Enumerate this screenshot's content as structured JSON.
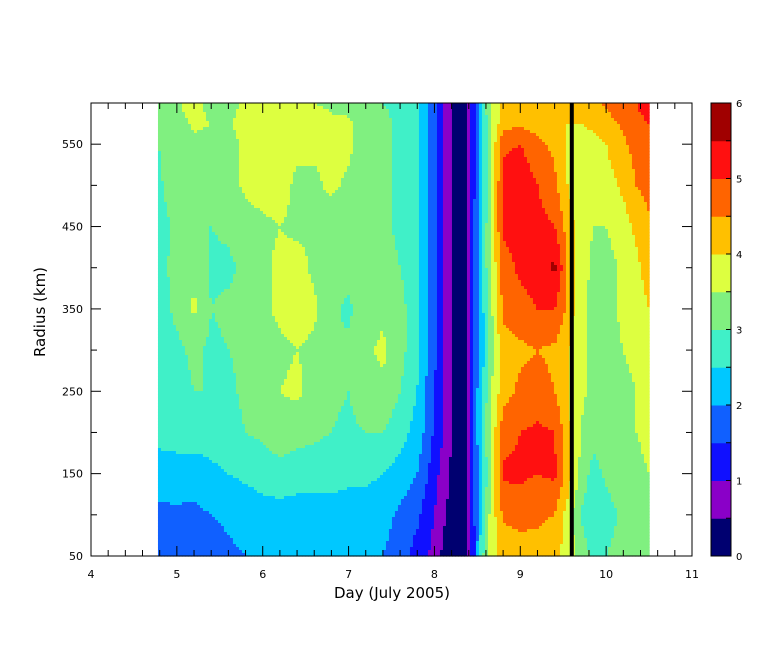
{
  "chart_data": {
    "type": "heatmap",
    "title": "",
    "xlabel": "Day (July 2005)",
    "ylabel": "Radius (km)",
    "xlim": [
      4,
      11
    ],
    "ylim": [
      50,
      600
    ],
    "x_ticks": [
      4,
      5,
      6,
      7,
      8,
      9,
      10,
      11
    ],
    "x_minor_step": 0.2,
    "y_ticks": [
      50,
      150,
      250,
      350,
      450,
      550
    ],
    "y_minor_step": 50,
    "data_x_range": [
      4.78,
      10.5
    ],
    "colorbar": {
      "min": 0,
      "max": 6,
      "step": 0.5,
      "labels": [
        0,
        1,
        2,
        3,
        4,
        5,
        6
      ],
      "colors": [
        "#000070",
        "#8a00c8",
        "#1010ff",
        "#1060ff",
        "#00c8ff",
        "#40f0c8",
        "#80f080",
        "#ddff40",
        "#ffc000",
        "#ff6400",
        "#ff1010",
        "#a00000"
      ]
    },
    "columns": [
      {
        "day": 4.78,
        "values": [
          1.8,
          1.9,
          2.2,
          2.7,
          2.9,
          2.8,
          2.8,
          2.9,
          2.8,
          2.9,
          3.0,
          3.3,
          3.2
        ]
      },
      {
        "day": 5.0,
        "values": [
          1.7,
          1.9,
          2.3,
          2.7,
          2.8,
          2.9,
          3.1,
          3.1,
          3.1,
          3.3,
          3.2,
          3.2,
          3.4
        ]
      },
      {
        "day": 5.2,
        "values": [
          1.6,
          1.9,
          2.2,
          2.8,
          3.0,
          3.1,
          3.6,
          3.4,
          3.0,
          3.3,
          3.4,
          3.6,
          3.9
        ]
      },
      {
        "day": 5.4,
        "values": [
          1.7,
          2.0,
          2.4,
          2.7,
          3.0,
          2.9,
          3.0,
          2.9,
          3.0,
          3.2,
          3.3,
          3.5,
          3.2
        ]
      },
      {
        "day": 5.6,
        "values": [
          1.9,
          2.1,
          2.5,
          2.8,
          2.9,
          3.0,
          3.1,
          2.9,
          3.1,
          3.3,
          3.2,
          3.4,
          3.3
        ]
      },
      {
        "day": 5.8,
        "values": [
          2.0,
          2.2,
          2.6,
          3.0,
          3.1,
          3.1,
          3.2,
          3.1,
          3.3,
          3.6,
          3.7,
          3.8,
          3.6
        ]
      },
      {
        "day": 6.0,
        "values": [
          2.0,
          2.3,
          2.7,
          3.1,
          3.3,
          3.3,
          3.4,
          3.4,
          3.4,
          3.7,
          3.8,
          3.8,
          3.5
        ]
      },
      {
        "day": 6.2,
        "values": [
          2.0,
          2.3,
          2.8,
          3.3,
          3.5,
          3.4,
          3.6,
          3.6,
          3.5,
          3.7,
          3.6,
          3.7,
          3.5
        ]
      },
      {
        "day": 6.4,
        "values": [
          2.0,
          2.3,
          2.7,
          3.2,
          3.6,
          3.5,
          3.7,
          3.7,
          3.4,
          3.4,
          3.6,
          3.7,
          3.6
        ]
      },
      {
        "day": 6.6,
        "values": [
          2.0,
          2.3,
          2.7,
          3.1,
          3.3,
          3.4,
          3.6,
          3.4,
          3.4,
          3.4,
          3.6,
          3.8,
          3.5
        ]
      },
      {
        "day": 6.8,
        "values": [
          2.0,
          2.3,
          2.7,
          3.0,
          3.1,
          3.0,
          3.1,
          3.1,
          3.2,
          3.6,
          3.7,
          3.6,
          3.4
        ]
      },
      {
        "day": 7.0,
        "values": [
          2.0,
          2.3,
          2.6,
          2.9,
          3.0,
          3.1,
          2.9,
          3.2,
          3.3,
          3.4,
          3.6,
          3.6,
          3.3
        ]
      },
      {
        "day": 7.2,
        "values": [
          2.0,
          2.3,
          2.6,
          3.0,
          3.3,
          3.4,
          3.3,
          3.4,
          3.3,
          3.2,
          3.3,
          3.3,
          3.2
        ]
      },
      {
        "day": 7.4,
        "values": [
          2.0,
          2.2,
          2.5,
          3.0,
          3.4,
          3.6,
          3.4,
          3.2,
          3.1,
          3.1,
          3.1,
          3.1,
          3.0
        ]
      },
      {
        "day": 7.6,
        "values": [
          1.7,
          1.9,
          2.3,
          2.7,
          3.0,
          3.2,
          3.2,
          3.0,
          2.9,
          2.9,
          2.9,
          2.9,
          2.9
        ]
      },
      {
        "day": 7.8,
        "values": [
          1.3,
          1.6,
          2.0,
          2.3,
          2.5,
          2.6,
          2.6,
          2.6,
          2.6,
          2.6,
          2.6,
          2.6,
          2.6
        ]
      },
      {
        "day": 7.9,
        "values": [
          1.1,
          1.3,
          1.6,
          1.9,
          2.0,
          2.1,
          2.1,
          2.1,
          2.1,
          2.1,
          2.1,
          2.1,
          2.1
        ]
      },
      {
        "day": 8.0,
        "values": [
          0.8,
          1.0,
          1.2,
          1.4,
          1.5,
          1.6,
          1.6,
          1.6,
          1.6,
          1.6,
          1.6,
          1.6,
          1.6
        ]
      },
      {
        "day": 8.1,
        "values": [
          0.4,
          0.6,
          0.8,
          1.0,
          1.1,
          1.1,
          1.1,
          1.1,
          1.1,
          1.1,
          1.1,
          1.1,
          1.1
        ]
      },
      {
        "day": 8.2,
        "values": [
          0.3,
          0.3,
          0.4,
          0.5,
          0.5,
          0.5,
          0.5,
          0.5,
          0.5,
          0.5,
          0.5,
          0.5,
          0.5
        ]
      },
      {
        "day": 8.35,
        "values": [
          0.3,
          0.3,
          0.3,
          0.3,
          0.3,
          0.3,
          0.3,
          0.3,
          0.3,
          0.3,
          0.3,
          0.3,
          0.3
        ]
      },
      {
        "day": 8.45,
        "values": [
          1.2,
          1.3,
          1.4,
          1.5,
          1.6,
          1.5,
          1.4,
          1.4,
          1.4,
          1.3,
          1.3,
          1.3,
          1.3
        ]
      },
      {
        "day": 8.55,
        "values": [
          2.8,
          2.6,
          2.3,
          2.6,
          2.4,
          2.2,
          2.3,
          2.5,
          2.4,
          2.3,
          2.4,
          2.4,
          2.5
        ]
      },
      {
        "day": 8.65,
        "values": [
          3.8,
          3.6,
          3.4,
          3.5,
          3.4,
          3.2,
          3.3,
          3.4,
          3.5,
          3.3,
          3.4,
          3.4,
          3.5
        ]
      },
      {
        "day": 8.8,
        "values": [
          4.1,
          4.6,
          5.1,
          4.8,
          4.3,
          4.3,
          4.6,
          4.8,
          5.1,
          5.2,
          4.9,
          4.3,
          4.1
        ]
      },
      {
        "day": 9.0,
        "values": [
          4.2,
          4.7,
          5.1,
          5.0,
          4.6,
          4.4,
          4.8,
          5.1,
          5.2,
          5.4,
          5.0,
          4.4,
          4.1
        ]
      },
      {
        "day": 9.2,
        "values": [
          4.3,
          4.6,
          5.0,
          5.1,
          4.7,
          4.5,
          5.0,
          5.3,
          5.2,
          5.0,
          4.6,
          4.3,
          4.1
        ]
      },
      {
        "day": 9.4,
        "values": [
          4.1,
          4.5,
          5.1,
          5.0,
          4.5,
          4.4,
          5.0,
          5.6,
          5.0,
          4.6,
          4.4,
          4.1,
          4.1
        ]
      },
      {
        "day": 9.55,
        "values": [
          3.8,
          3.8,
          4.3,
          4.2,
          4.0,
          4.1,
          4.4,
          4.5,
          4.3,
          4.0,
          3.9,
          4.0,
          4.1
        ]
      },
      {
        "day": 9.7,
        "values": [
          3.3,
          3.0,
          3.4,
          3.5,
          3.6,
          3.6,
          3.6,
          3.7,
          3.7,
          3.7,
          3.8,
          4.0,
          4.1
        ]
      },
      {
        "day": 9.85,
        "values": [
          2.9,
          2.5,
          2.8,
          3.2,
          3.4,
          3.4,
          3.4,
          3.4,
          3.5,
          3.7,
          3.8,
          4.1,
          4.4
        ]
      },
      {
        "day": 10.0,
        "values": [
          3.0,
          2.8,
          3.1,
          3.3,
          3.4,
          3.4,
          3.3,
          3.3,
          3.5,
          3.8,
          4.0,
          4.3,
          4.6
        ]
      },
      {
        "day": 10.2,
        "values": [
          3.2,
          3.1,
          3.3,
          3.4,
          3.4,
          3.5,
          3.6,
          3.6,
          3.8,
          4.1,
          4.4,
          4.6,
          4.8
        ]
      },
      {
        "day": 10.35,
        "values": [
          3.3,
          3.3,
          3.4,
          3.5,
          3.5,
          3.6,
          3.8,
          3.9,
          4.1,
          4.5,
          4.7,
          4.9,
          5.0
        ]
      },
      {
        "day": 10.5,
        "values": [
          3.4,
          3.4,
          3.5,
          3.6,
          3.7,
          3.8,
          4.0,
          4.2,
          4.4,
          4.7,
          4.9,
          5.0,
          5.2
        ]
      }
    ],
    "radii": [
      50,
      100,
      150,
      200,
      250,
      300,
      350,
      400,
      450,
      500,
      550,
      575,
      600
    ],
    "markers": [
      {
        "day": 9.6,
        "style": "vertical black line"
      }
    ]
  }
}
